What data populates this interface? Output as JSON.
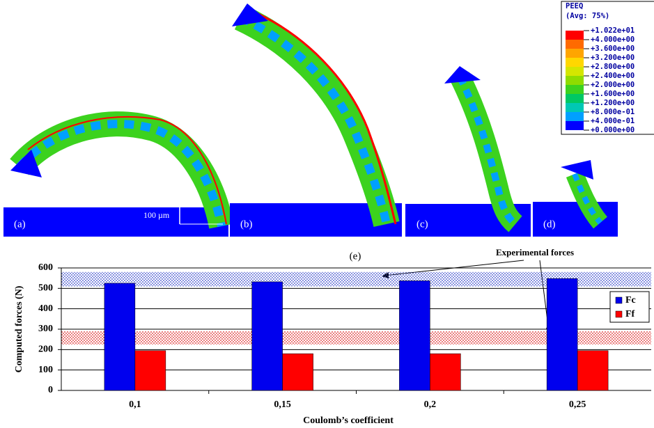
{
  "figure": {
    "panel_labels": [
      "(a)",
      "(b)",
      "(c)",
      "(d)"
    ],
    "scale_label": "100 µm",
    "contour_legend": {
      "title": "PEEQ",
      "subtitle": "(Avg: 75%)",
      "labels": [
        "+1.022e+01",
        "+4.000e+00",
        "+3.600e+00",
        "+3.200e+00",
        "+2.800e+00",
        "+2.400e+00",
        "+2.000e+00",
        "+1.600e+00",
        "+1.200e+00",
        "+8.000e-01",
        "+4.000e-01",
        "+0.000e+00"
      ],
      "colors": [
        "#ff0000",
        "#ff6a00",
        "#ffa500",
        "#ffd700",
        "#d4e600",
        "#8fdc00",
        "#3cd21e",
        "#00c864",
        "#00c8b4",
        "#00a0ff",
        "#0000ff"
      ]
    }
  },
  "chart_data": {
    "type": "bar",
    "label": "(e)",
    "annotation": "Experimental forces",
    "categories": [
      "0,1",
      "0,15",
      "0,2",
      "0,25"
    ],
    "series": [
      {
        "name": "Fc",
        "color": "#0000ee",
        "values": [
          525,
          532,
          537,
          548
        ]
      },
      {
        "name": "Ff",
        "color": "#ff0000",
        "values": [
          195,
          180,
          180,
          195
        ]
      }
    ],
    "bands": [
      {
        "ymin": 510,
        "ymax": 580,
        "color": "#3344cc"
      },
      {
        "ymin": 225,
        "ymax": 290,
        "color": "#dd2222"
      }
    ],
    "ylim": [
      0,
      600
    ],
    "yticks": [
      0,
      100,
      200,
      300,
      400,
      500,
      600
    ],
    "grid": true,
    "legend": "right",
    "ylabel": "Computed forces (N)",
    "xlabel": "Coulomb’s coefficient"
  }
}
